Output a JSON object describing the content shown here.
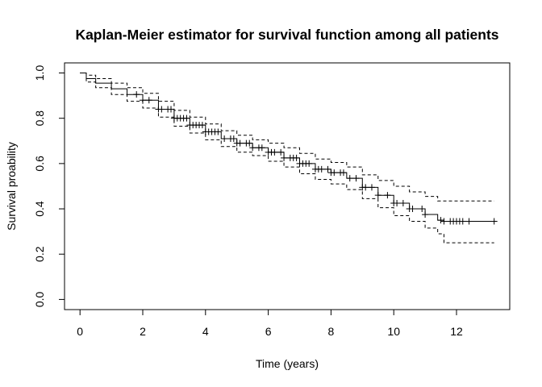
{
  "chart_data": {
    "type": "line",
    "title": "Kaplan-Meier estimator for survival function among all patients",
    "xlabel": "Time (years)",
    "ylabel": "Survival proability",
    "xlim": [
      0,
      13.2
    ],
    "ylim": [
      0,
      1.0
    ],
    "xticks": [
      0,
      2,
      4,
      6,
      8,
      10,
      12
    ],
    "yticks": [
      0.0,
      0.2,
      0.4,
      0.6,
      0.8,
      1.0
    ],
    "xtick_labels": [
      "0",
      "2",
      "4",
      "6",
      "8",
      "10",
      "12"
    ],
    "ytick_labels": [
      "0.0",
      "0.2",
      "0.4",
      "0.6",
      "0.8",
      "1.0"
    ],
    "grid": false,
    "series": [
      {
        "role": "estimate",
        "line": "solid",
        "color": "#000000",
        "x": [
          0,
          0.2,
          0.5,
          1.0,
          1.5,
          2.0,
          2.5,
          3.0,
          3.5,
          4.0,
          4.5,
          5.0,
          5.5,
          6.0,
          6.5,
          7.0,
          7.5,
          8.0,
          8.5,
          9.0,
          9.5,
          10.0,
          10.5,
          11.0,
          11.4,
          11.6,
          12.0,
          13.2
        ],
        "y": [
          1.0,
          0.975,
          0.955,
          0.93,
          0.905,
          0.88,
          0.84,
          0.8,
          0.77,
          0.74,
          0.71,
          0.69,
          0.67,
          0.65,
          0.625,
          0.6,
          0.575,
          0.56,
          0.535,
          0.495,
          0.46,
          0.425,
          0.4,
          0.375,
          0.35,
          0.345,
          0.345,
          0.345
        ]
      },
      {
        "role": "upper-ci",
        "line": "dashed",
        "color": "#000000",
        "x": [
          0,
          0.2,
          0.5,
          1.0,
          1.5,
          2.0,
          2.5,
          3.0,
          3.5,
          4.0,
          4.5,
          5.0,
          5.5,
          6.0,
          6.5,
          7.0,
          7.5,
          8.0,
          8.5,
          9.0,
          9.5,
          10.0,
          10.5,
          11.0,
          11.4,
          11.6,
          12.0,
          13.2
        ],
        "y": [
          1.0,
          0.99,
          0.975,
          0.955,
          0.935,
          0.91,
          0.875,
          0.835,
          0.805,
          0.775,
          0.745,
          0.725,
          0.705,
          0.69,
          0.67,
          0.645,
          0.62,
          0.605,
          0.585,
          0.55,
          0.525,
          0.5,
          0.475,
          0.455,
          0.435,
          0.435,
          0.435,
          0.435
        ]
      },
      {
        "role": "lower-ci",
        "line": "dashed",
        "color": "#000000",
        "x": [
          0,
          0.2,
          0.5,
          1.0,
          1.5,
          2.0,
          2.5,
          3.0,
          3.5,
          4.0,
          4.5,
          5.0,
          5.5,
          6.0,
          6.5,
          7.0,
          7.5,
          8.0,
          8.5,
          9.0,
          9.5,
          10.0,
          10.5,
          11.0,
          11.4,
          11.6,
          12.0,
          13.2
        ],
        "y": [
          1.0,
          0.96,
          0.935,
          0.905,
          0.875,
          0.845,
          0.805,
          0.765,
          0.735,
          0.705,
          0.675,
          0.65,
          0.635,
          0.61,
          0.585,
          0.555,
          0.53,
          0.51,
          0.485,
          0.445,
          0.405,
          0.37,
          0.345,
          0.315,
          0.29,
          0.25,
          0.25,
          0.25
        ]
      }
    ],
    "censor_times": [
      1.8,
      2.0,
      2.2,
      2.5,
      2.6,
      2.8,
      2.9,
      3.0,
      3.1,
      3.2,
      3.3,
      3.4,
      3.5,
      3.6,
      3.7,
      3.8,
      3.9,
      4.0,
      4.1,
      4.2,
      4.3,
      4.4,
      4.6,
      4.8,
      4.9,
      5.0,
      5.1,
      5.3,
      5.4,
      5.5,
      5.7,
      5.8,
      6.0,
      6.1,
      6.2,
      6.4,
      6.5,
      6.7,
      6.8,
      6.9,
      7.0,
      7.1,
      7.2,
      7.3,
      7.5,
      7.6,
      7.7,
      7.9,
      8.0,
      8.1,
      8.3,
      8.4,
      8.6,
      8.8,
      9.0,
      9.1,
      9.3,
      9.5,
      9.8,
      10.0,
      10.1,
      10.3,
      10.5,
      10.6,
      10.9,
      11.0,
      11.5,
      11.6,
      11.8,
      11.9,
      12.0,
      12.1,
      12.2,
      12.4,
      13.2
    ]
  }
}
